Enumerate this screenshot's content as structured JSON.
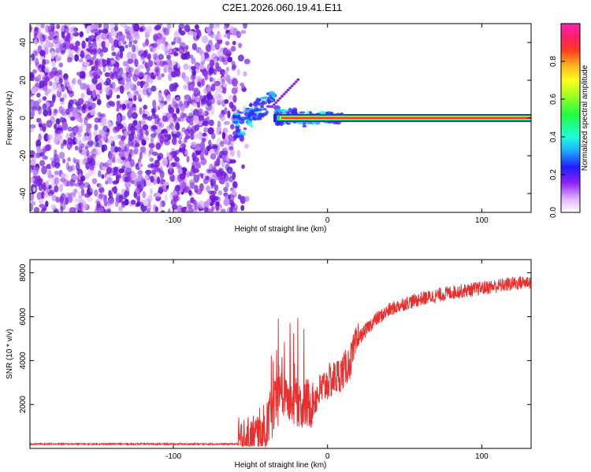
{
  "title": "C2E1.2026.060.19.41.E11",
  "colors": {
    "snr_line": "#e8302e",
    "scatter_purple": "#7a1fe0",
    "band_red": "#ff1f1f",
    "band_green": "#20e060"
  },
  "chart_data": [
    {
      "id": "spectrogram",
      "type": "heatmap",
      "xlabel": "Height of straight line (km)",
      "ylabel": "Frequency (Hz)",
      "xlim": [
        -193,
        132
      ],
      "ylim": [
        -50,
        50
      ],
      "xticks": [
        -100,
        0,
        100
      ],
      "xtick_labels": [
        "-100",
        "0",
        "100"
      ],
      "yticks": [
        -40,
        -20,
        0,
        20,
        40
      ],
      "ytick_labels": [
        "-40",
        "-20",
        "0",
        "20",
        "40"
      ],
      "noise_region_x": [
        -193,
        -60
      ],
      "transition_region_x": [
        -60,
        10
      ],
      "signal_band": {
        "x": [
          -30,
          132
        ],
        "frequency_hz": 0,
        "amplitude": 1.0
      },
      "colorbar": {
        "label": "Normalized spectral amplitude",
        "range": [
          0.0,
          1.0
        ],
        "ticks": [
          0.0,
          0.2,
          0.4,
          0.6,
          0.8
        ],
        "tick_labels": [
          "0.0",
          "0.2",
          "0.4",
          "0.6",
          "0.8"
        ]
      }
    },
    {
      "id": "snr",
      "type": "line",
      "xlabel": "Height of straight line (km)",
      "ylabel": "SNR (10 * v/v)",
      "xlim": [
        -193,
        132
      ],
      "ylim": [
        0,
        8600
      ],
      "xticks": [
        -100,
        0,
        100
      ],
      "xtick_labels": [
        "-100",
        "0",
        "100"
      ],
      "yticks": [
        2000,
        4000,
        6000,
        8000
      ],
      "ytick_labels": [
        "2000",
        "4000",
        "6000",
        "8000"
      ],
      "series": [
        {
          "name": "SNR",
          "x": [
            -193,
            -150,
            -100,
            -60,
            -50,
            -40,
            -35,
            -30,
            -25,
            -20,
            -15,
            -10,
            -5,
            0,
            5,
            10,
            15,
            20,
            30,
            40,
            50,
            60,
            80,
            100,
            120,
            132
          ],
          "values": [
            200,
            200,
            200,
            200,
            300,
            900,
            1800,
            2500,
            2300,
            2200,
            2000,
            2100,
            2600,
            3000,
            3200,
            3500,
            4000,
            5000,
            5800,
            6300,
            6600,
            6800,
            7100,
            7300,
            7500,
            7600
          ]
        }
      ]
    }
  ]
}
